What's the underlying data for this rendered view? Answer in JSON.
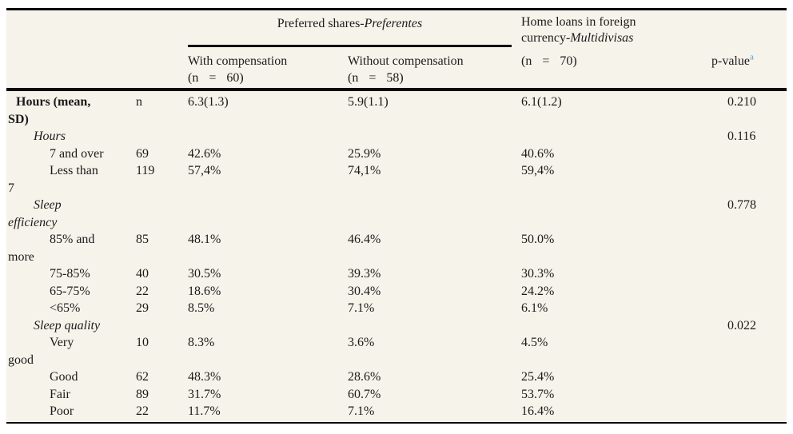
{
  "colors": {
    "table_background": "#f6f3ea",
    "rule_color": "#0a0a0a",
    "text_color": "#1b1b1b",
    "footnote_accent": "#4aa2d9"
  },
  "table": {
    "header": {
      "group1": {
        "text": "Preferred shares-",
        "italic": "Preferentes"
      },
      "group2": {
        "text": "Home loans in foreign currency-",
        "italic": "Multidivisas"
      },
      "col_with": {
        "label": "With compensation",
        "n_line": "(n = 60)"
      },
      "col_without": {
        "label": "Without compensation",
        "n_line": "(n = 58)"
      },
      "col_home_n": "(n = 70)",
      "p_value": {
        "label": "p-value",
        "footnote": "a"
      }
    },
    "rows": [
      {
        "label": "Hours (mean,\nSD)",
        "level": 0,
        "bold": true,
        "n": "n",
        "c1": "6.3(1.3)",
        "c2": "5.9(1.1)",
        "c3": "6.1(1.2)",
        "p": "0.210"
      },
      {
        "label": "Hours",
        "level": 1,
        "italic": true,
        "p": "0.116"
      },
      {
        "label": "7 and over",
        "level": 2,
        "n": "69",
        "c1": "42.6%",
        "c2": "25.9%",
        "c3": "40.6%"
      },
      {
        "label": "Less than\n7",
        "level": 2,
        "n": "119",
        "c1": "57,4%",
        "c2": "74,1%",
        "c3": "59,4%"
      },
      {
        "label": "Sleep\nefficiency",
        "level": 1,
        "italic": true,
        "p": "0.778"
      },
      {
        "label": "85% and\nmore",
        "level": 2,
        "n": "85",
        "c1": "48.1%",
        "c2": "46.4%",
        "c3": "50.0%"
      },
      {
        "label": "75-85%",
        "level": 2,
        "n": "40",
        "c1": "30.5%",
        "c2": "39.3%",
        "c3": "30.3%"
      },
      {
        "label": "65-75%",
        "level": 2,
        "n": "22",
        "c1": "18.6%",
        "c2": "30.4%",
        "c3": "24.2%"
      },
      {
        "label": "<65%",
        "level": 2,
        "n": "29",
        "c1": "8.5%",
        "c2": "7.1%",
        "c3": "6.1%"
      },
      {
        "label": "Sleep quality",
        "level": 1,
        "italic": true,
        "p": "0.022"
      },
      {
        "label": "Very\ngood",
        "level": 2,
        "n": "10",
        "c1": "8.3%",
        "c2": "3.6%",
        "c3": "4.5%"
      },
      {
        "label": "Good",
        "level": 2,
        "n": "62",
        "c1": "48.3%",
        "c2": "28.6%",
        "c3": "25.4%"
      },
      {
        "label": "Fair",
        "level": 2,
        "n": "89",
        "c1": "31.7%",
        "c2": "60.7%",
        "c3": "53.7%"
      },
      {
        "label": "Poor",
        "level": 2,
        "n": "22",
        "c1": "11.7%",
        "c2": "7.1%",
        "c3": "16.4%"
      }
    ]
  }
}
